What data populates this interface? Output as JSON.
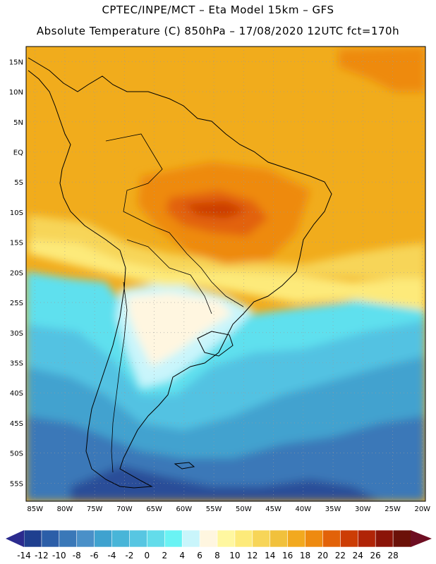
{
  "header": {
    "line1": "CPTEC/INPE/MCT –  Eta Model 15km – GFS",
    "line2": "Absolute Temperature (C) 850hPa – 17/08/2020 12UTC fct=170h"
  },
  "axes": {
    "lat_labels": [
      "15N",
      "10N",
      "5N",
      "EQ",
      "5S",
      "10S",
      "15S",
      "20S",
      "25S",
      "30S",
      "35S",
      "40S",
      "45S",
      "50S",
      "55S"
    ],
    "lat_values": [
      15,
      10,
      5,
      0,
      -5,
      -10,
      -15,
      -20,
      -25,
      -30,
      -35,
      -40,
      -45,
      -50,
      -55
    ],
    "lon_labels": [
      "85W",
      "80W",
      "75W",
      "70W",
      "65W",
      "60W",
      "55W",
      "50W",
      "45W",
      "40W",
      "35W",
      "30W",
      "25W",
      "20W"
    ],
    "lon_values": [
      -85,
      -80,
      -75,
      -70,
      -65,
      -60,
      -55,
      -50,
      -45,
      -40,
      -35,
      -30,
      -25,
      -20
    ]
  },
  "colorbar": {
    "labels": [
      "-14",
      "-12",
      "-10",
      "-8",
      "-6",
      "-4",
      "-2",
      "0",
      "2",
      "4",
      "6",
      "8",
      "10",
      "12",
      "14",
      "16",
      "18",
      "20",
      "22",
      "24",
      "26",
      "28"
    ],
    "colors": [
      "#1f3f8f",
      "#2c5ea8",
      "#3a78b8",
      "#4a90c8",
      "#3fa2cf",
      "#48b5d8",
      "#57c6e2",
      "#63dcea",
      "#6af3f4",
      "#c9f5fb",
      "#fff6e0",
      "#fff7a0",
      "#fdea7a",
      "#f7d558",
      "#f1c13c",
      "#f2a91f",
      "#ee8a10",
      "#e26209",
      "#cc3d05",
      "#b02407",
      "#8b1408",
      "#6b1108"
    ],
    "under_color": "#2b2b8e",
    "over_color": "#6e0e22"
  },
  "map_colors": {
    "background": "#f1ac1c",
    "deep_cold": "#2c4d98",
    "cold": "#3a78b8",
    "cool": "#43a2cf",
    "mild_cool": "#52c2e2",
    "aqua": "#5fe0ee",
    "pale": "#c9f5fb",
    "cream": "#fff6e0",
    "light_yellow": "#fdea7a",
    "yellow": "#f7d558",
    "orange": "#ee8a10",
    "deep_orange": "#e26209",
    "red_orange": "#cc3d05",
    "coast": "#000000",
    "grid": "#9a9a9a"
  }
}
